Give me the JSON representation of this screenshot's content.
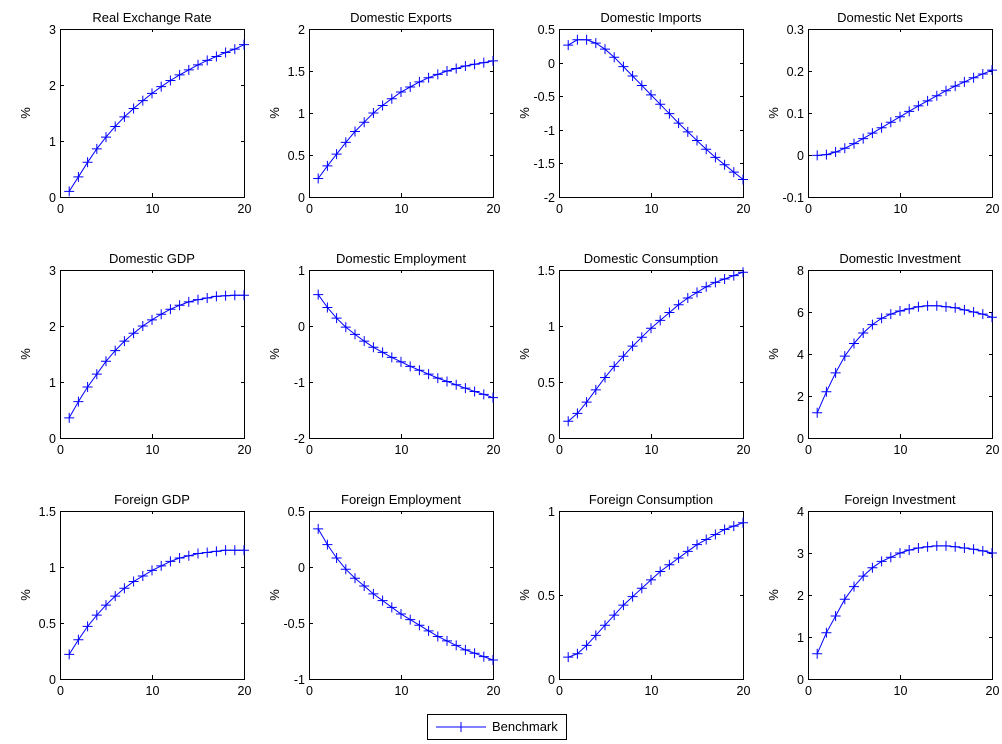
{
  "chart_data": [
    {
      "type": "line",
      "title": "Real Exchange Rate",
      "ylabel": "%",
      "xlim": [
        0,
        20
      ],
      "ylim": [
        0,
        3
      ],
      "xticks": [
        "0",
        "10",
        "20"
      ],
      "yticks": [
        "0",
        "1",
        "2",
        "3"
      ],
      "series": [
        {
          "name": "Benchmark",
          "x": [
            1,
            2,
            3,
            4,
            5,
            6,
            7,
            8,
            9,
            10,
            11,
            12,
            13,
            14,
            15,
            16,
            17,
            18,
            19,
            20
          ],
          "values": [
            0.1,
            0.36,
            0.62,
            0.86,
            1.07,
            1.26,
            1.43,
            1.58,
            1.72,
            1.85,
            1.97,
            2.08,
            2.18,
            2.27,
            2.36,
            2.44,
            2.51,
            2.58,
            2.64,
            2.72
          ]
        }
      ]
    },
    {
      "type": "line",
      "title": "Domestic Exports",
      "ylabel": "%",
      "xlim": [
        0,
        20
      ],
      "ylim": [
        0,
        2
      ],
      "xticks": [
        "0",
        "10",
        "20"
      ],
      "yticks": [
        "0",
        "0.5",
        "1",
        "1.5",
        "2"
      ],
      "series": [
        {
          "name": "Benchmark",
          "x": [
            1,
            2,
            3,
            4,
            5,
            6,
            7,
            8,
            9,
            10,
            11,
            12,
            13,
            14,
            15,
            16,
            17,
            18,
            19,
            20
          ],
          "values": [
            0.22,
            0.37,
            0.51,
            0.65,
            0.78,
            0.89,
            1.0,
            1.09,
            1.17,
            1.25,
            1.31,
            1.37,
            1.42,
            1.46,
            1.5,
            1.53,
            1.56,
            1.58,
            1.6,
            1.62
          ]
        }
      ]
    },
    {
      "type": "line",
      "title": "Domestic Imports",
      "ylabel": "%",
      "xlim": [
        0,
        20
      ],
      "ylim": [
        -2,
        0.5
      ],
      "xticks": [
        "0",
        "10",
        "20"
      ],
      "yticks": [
        "-2",
        "-1.5",
        "-1",
        "-0.5",
        "0",
        "0.5"
      ],
      "series": [
        {
          "name": "Benchmark",
          "x": [
            1,
            2,
            3,
            4,
            5,
            6,
            7,
            8,
            9,
            10,
            11,
            12,
            13,
            14,
            15,
            16,
            17,
            18,
            19,
            20
          ],
          "values": [
            0.26,
            0.34,
            0.34,
            0.29,
            0.2,
            0.08,
            -0.06,
            -0.2,
            -0.34,
            -0.48,
            -0.62,
            -0.76,
            -0.9,
            -1.03,
            -1.16,
            -1.29,
            -1.41,
            -1.52,
            -1.63,
            -1.74
          ]
        }
      ]
    },
    {
      "type": "line",
      "title": "Domestic Net Exports",
      "ylabel": "%",
      "xlim": [
        0,
        20
      ],
      "ylim": [
        -0.1,
        0.3
      ],
      "xticks": [
        "0",
        "10",
        "20"
      ],
      "yticks": [
        "-0.1",
        "0",
        "0.1",
        "0.2",
        "0.3"
      ],
      "series": [
        {
          "name": "Benchmark",
          "x": [
            1,
            2,
            3,
            4,
            5,
            6,
            7,
            8,
            9,
            10,
            11,
            12,
            13,
            14,
            15,
            16,
            17,
            18,
            19,
            20
          ],
          "values": [
            -0.001,
            0.001,
            0.007,
            0.016,
            0.027,
            0.039,
            0.052,
            0.065,
            0.078,
            0.091,
            0.104,
            0.117,
            0.129,
            0.141,
            0.153,
            0.164,
            0.174,
            0.184,
            0.193,
            0.202
          ]
        }
      ]
    },
    {
      "type": "line",
      "title": "Domestic GDP",
      "ylabel": "%",
      "xlim": [
        0,
        20
      ],
      "ylim": [
        0,
        3
      ],
      "xticks": [
        "0",
        "10",
        "20"
      ],
      "yticks": [
        "0",
        "1",
        "2",
        "3"
      ],
      "series": [
        {
          "name": "Benchmark",
          "x": [
            1,
            2,
            3,
            4,
            5,
            6,
            7,
            8,
            9,
            10,
            11,
            12,
            13,
            14,
            15,
            16,
            17,
            18,
            19,
            20
          ],
          "values": [
            0.36,
            0.65,
            0.91,
            1.14,
            1.37,
            1.56,
            1.73,
            1.87,
            2.0,
            2.11,
            2.21,
            2.3,
            2.37,
            2.43,
            2.47,
            2.5,
            2.53,
            2.54,
            2.55,
            2.55
          ]
        }
      ]
    },
    {
      "type": "line",
      "title": "Domestic Employment",
      "ylabel": "%",
      "xlim": [
        0,
        20
      ],
      "ylim": [
        -2,
        1
      ],
      "xticks": [
        "0",
        "10",
        "20"
      ],
      "yticks": [
        "-2",
        "-1",
        "0",
        "1"
      ],
      "series": [
        {
          "name": "Benchmark",
          "x": [
            1,
            2,
            3,
            4,
            5,
            6,
            7,
            8,
            9,
            10,
            11,
            12,
            13,
            14,
            15,
            16,
            17,
            18,
            19,
            20
          ],
          "values": [
            0.56,
            0.33,
            0.14,
            -0.02,
            -0.15,
            -0.27,
            -0.38,
            -0.47,
            -0.56,
            -0.64,
            -0.72,
            -0.79,
            -0.86,
            -0.93,
            -0.99,
            -1.05,
            -1.11,
            -1.17,
            -1.22,
            -1.28
          ]
        }
      ]
    },
    {
      "type": "line",
      "title": "Domestic Consumption",
      "ylabel": "%",
      "xlim": [
        0,
        20
      ],
      "ylim": [
        0,
        1.5
      ],
      "xticks": [
        "0",
        "10",
        "20"
      ],
      "yticks": [
        "0",
        "0.5",
        "1",
        "1.5"
      ],
      "series": [
        {
          "name": "Benchmark",
          "x": [
            1,
            2,
            3,
            4,
            5,
            6,
            7,
            8,
            9,
            10,
            11,
            12,
            13,
            14,
            15,
            16,
            17,
            18,
            19,
            20
          ],
          "values": [
            0.15,
            0.22,
            0.32,
            0.43,
            0.54,
            0.64,
            0.73,
            0.82,
            0.9,
            0.98,
            1.05,
            1.12,
            1.19,
            1.25,
            1.3,
            1.35,
            1.39,
            1.42,
            1.45,
            1.48
          ]
        }
      ]
    },
    {
      "type": "line",
      "title": "Domestic Investment",
      "ylabel": "%",
      "xlim": [
        0,
        20
      ],
      "ylim": [
        0,
        8
      ],
      "xticks": [
        "0",
        "10",
        "20"
      ],
      "yticks": [
        "0",
        "2",
        "4",
        "6",
        "8"
      ],
      "series": [
        {
          "name": "Benchmark",
          "x": [
            1,
            2,
            3,
            4,
            5,
            6,
            7,
            8,
            9,
            10,
            11,
            12,
            13,
            14,
            15,
            16,
            17,
            18,
            19,
            20
          ],
          "values": [
            1.2,
            2.2,
            3.1,
            3.9,
            4.5,
            5.0,
            5.4,
            5.7,
            5.9,
            6.05,
            6.15,
            6.25,
            6.3,
            6.3,
            6.25,
            6.2,
            6.1,
            6.0,
            5.9,
            5.75
          ]
        }
      ]
    },
    {
      "type": "line",
      "title": "Foreign GDP",
      "ylabel": "%",
      "xlim": [
        0,
        20
      ],
      "ylim": [
        0,
        1.5
      ],
      "xticks": [
        "0",
        "10",
        "20"
      ],
      "yticks": [
        "0",
        "0.5",
        "1",
        "1.5"
      ],
      "series": [
        {
          "name": "Benchmark",
          "x": [
            1,
            2,
            3,
            4,
            5,
            6,
            7,
            8,
            9,
            10,
            11,
            12,
            13,
            14,
            15,
            16,
            17,
            18,
            19,
            20
          ],
          "values": [
            0.22,
            0.35,
            0.47,
            0.57,
            0.66,
            0.74,
            0.81,
            0.87,
            0.92,
            0.97,
            1.01,
            1.05,
            1.08,
            1.1,
            1.12,
            1.13,
            1.14,
            1.15,
            1.15,
            1.15
          ]
        }
      ]
    },
    {
      "type": "line",
      "title": "Foreign Employment",
      "ylabel": "%",
      "xlim": [
        0,
        20
      ],
      "ylim": [
        -1,
        0.5
      ],
      "xticks": [
        "0",
        "10",
        "20"
      ],
      "yticks": [
        "-1",
        "-0.5",
        "0",
        "0.5"
      ],
      "series": [
        {
          "name": "Benchmark",
          "x": [
            1,
            2,
            3,
            4,
            5,
            6,
            7,
            8,
            9,
            10,
            11,
            12,
            13,
            14,
            15,
            16,
            17,
            18,
            19,
            20
          ],
          "values": [
            0.34,
            0.2,
            0.08,
            -0.02,
            -0.1,
            -0.17,
            -0.24,
            -0.3,
            -0.36,
            -0.42,
            -0.47,
            -0.52,
            -0.57,
            -0.62,
            -0.66,
            -0.7,
            -0.74,
            -0.77,
            -0.8,
            -0.83
          ]
        }
      ]
    },
    {
      "type": "line",
      "title": "Foreign Consumption",
      "ylabel": "%",
      "xlim": [
        0,
        20
      ],
      "ylim": [
        0,
        1
      ],
      "xticks": [
        "0",
        "10",
        "20"
      ],
      "yticks": [
        "0",
        "0.5",
        "1"
      ],
      "series": [
        {
          "name": "Benchmark",
          "x": [
            1,
            2,
            3,
            4,
            5,
            6,
            7,
            8,
            9,
            10,
            11,
            12,
            13,
            14,
            15,
            16,
            17,
            18,
            19,
            20
          ],
          "values": [
            0.13,
            0.15,
            0.2,
            0.26,
            0.32,
            0.38,
            0.44,
            0.49,
            0.54,
            0.59,
            0.64,
            0.68,
            0.72,
            0.76,
            0.8,
            0.83,
            0.86,
            0.89,
            0.91,
            0.93
          ]
        }
      ]
    },
    {
      "type": "line",
      "title": "Foreign Investment",
      "ylabel": "%",
      "xlim": [
        0,
        20
      ],
      "ylim": [
        0,
        4
      ],
      "xticks": [
        "0",
        "10",
        "20"
      ],
      "yticks": [
        "0",
        "1",
        "2",
        "3",
        "4"
      ],
      "series": [
        {
          "name": "Benchmark",
          "x": [
            1,
            2,
            3,
            4,
            5,
            6,
            7,
            8,
            9,
            10,
            11,
            12,
            13,
            14,
            15,
            16,
            17,
            18,
            19,
            20
          ],
          "values": [
            0.6,
            1.1,
            1.5,
            1.9,
            2.2,
            2.45,
            2.65,
            2.8,
            2.9,
            3.0,
            3.07,
            3.12,
            3.15,
            3.17,
            3.17,
            3.15,
            3.12,
            3.09,
            3.05,
            3.0
          ]
        }
      ]
    }
  ],
  "legend": {
    "label": "Benchmark"
  },
  "colors": {
    "series": "#0000ff",
    "axes": "#000000"
  }
}
